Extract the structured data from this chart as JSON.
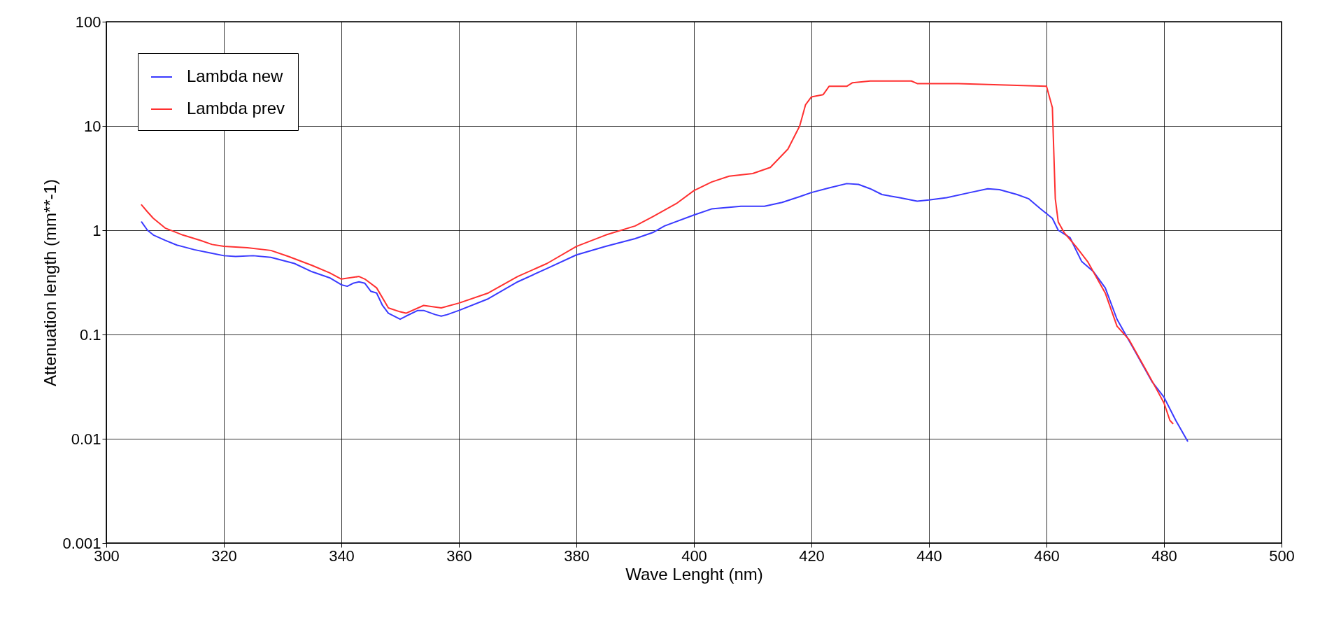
{
  "chart_data": {
    "type": "line",
    "xlabel": "Wave Lenght (nm)",
    "ylabel": "Attenuation length (mm**-1)",
    "log": "y",
    "grid": true,
    "legend": "top left",
    "marker": "none",
    "line_style": "solid",
    "xlim": [
      300,
      500
    ],
    "xticks": [
      300,
      320,
      340,
      360,
      380,
      400,
      420,
      440,
      460,
      480,
      500
    ],
    "ylim": [
      0.001,
      100
    ],
    "yticks": [
      0.001,
      0.01,
      0.1,
      1,
      10,
      100
    ],
    "series": [
      {
        "name": "Lambda new",
        "color": "#3a3aff",
        "x": [
          306,
          307,
          308,
          310,
          312,
          315,
          318,
          320,
          322,
          325,
          328,
          332,
          335,
          338,
          340,
          341,
          342,
          343,
          344,
          345,
          346,
          347,
          348,
          350,
          351,
          353,
          354,
          356,
          357,
          358,
          360,
          365,
          370,
          375,
          380,
          385,
          390,
          393,
          395,
          400,
          403,
          408,
          412,
          415,
          418,
          420,
          423,
          426,
          428,
          430,
          432,
          435,
          438,
          440,
          443,
          447,
          450,
          452,
          455,
          457,
          459,
          461,
          462,
          464,
          465,
          466,
          468,
          470,
          472,
          475,
          478,
          480,
          482,
          484
        ],
        "values": [
          1.2,
          1.0,
          0.9,
          0.8,
          0.72,
          0.65,
          0.6,
          0.57,
          0.56,
          0.57,
          0.55,
          0.48,
          0.4,
          0.35,
          0.3,
          0.29,
          0.31,
          0.32,
          0.31,
          0.26,
          0.25,
          0.19,
          0.16,
          0.14,
          0.15,
          0.17,
          0.17,
          0.155,
          0.15,
          0.155,
          0.17,
          0.22,
          0.32,
          0.43,
          0.58,
          0.7,
          0.83,
          0.95,
          1.1,
          1.4,
          1.6,
          1.7,
          1.7,
          1.85,
          2.1,
          2.3,
          2.55,
          2.8,
          2.75,
          2.5,
          2.2,
          2.05,
          1.9,
          1.95,
          2.05,
          2.3,
          2.5,
          2.45,
          2.2,
          2.0,
          1.6,
          1.3,
          1.0,
          0.85,
          0.65,
          0.5,
          0.4,
          0.28,
          0.14,
          0.07,
          0.035,
          0.025,
          0.015,
          0.0095
        ]
      },
      {
        "name": "Lambda prev",
        "color": "#ff3030",
        "x": [
          306,
          307,
          308,
          310,
          313,
          316,
          318,
          320,
          324,
          328,
          331,
          335,
          338,
          340,
          343,
          344,
          346,
          348,
          350,
          351,
          354,
          357,
          360,
          365,
          370,
          375,
          380,
          385,
          390,
          393,
          397,
          400,
          403,
          406,
          410,
          413,
          416,
          418,
          419,
          420,
          422,
          423,
          426,
          427,
          430,
          435,
          437,
          438,
          445,
          450,
          455,
          460,
          461,
          461.5,
          462,
          463,
          465,
          467,
          470,
          472,
          474,
          477,
          479,
          480,
          481,
          481.5
        ],
        "values": [
          1.75,
          1.5,
          1.3,
          1.05,
          0.9,
          0.8,
          0.73,
          0.7,
          0.68,
          0.64,
          0.56,
          0.46,
          0.39,
          0.34,
          0.36,
          0.34,
          0.28,
          0.18,
          0.165,
          0.16,
          0.19,
          0.18,
          0.2,
          0.25,
          0.36,
          0.48,
          0.7,
          0.9,
          1.1,
          1.35,
          1.8,
          2.4,
          2.9,
          3.3,
          3.5,
          4.0,
          6,
          10,
          16,
          19,
          20,
          24,
          24,
          26,
          27,
          27,
          27,
          25.5,
          25.5,
          25,
          24.5,
          24,
          15,
          2,
          1.2,
          0.95,
          0.7,
          0.5,
          0.25,
          0.12,
          0.09,
          0.045,
          0.028,
          0.022,
          0.015,
          0.014
        ]
      }
    ]
  }
}
